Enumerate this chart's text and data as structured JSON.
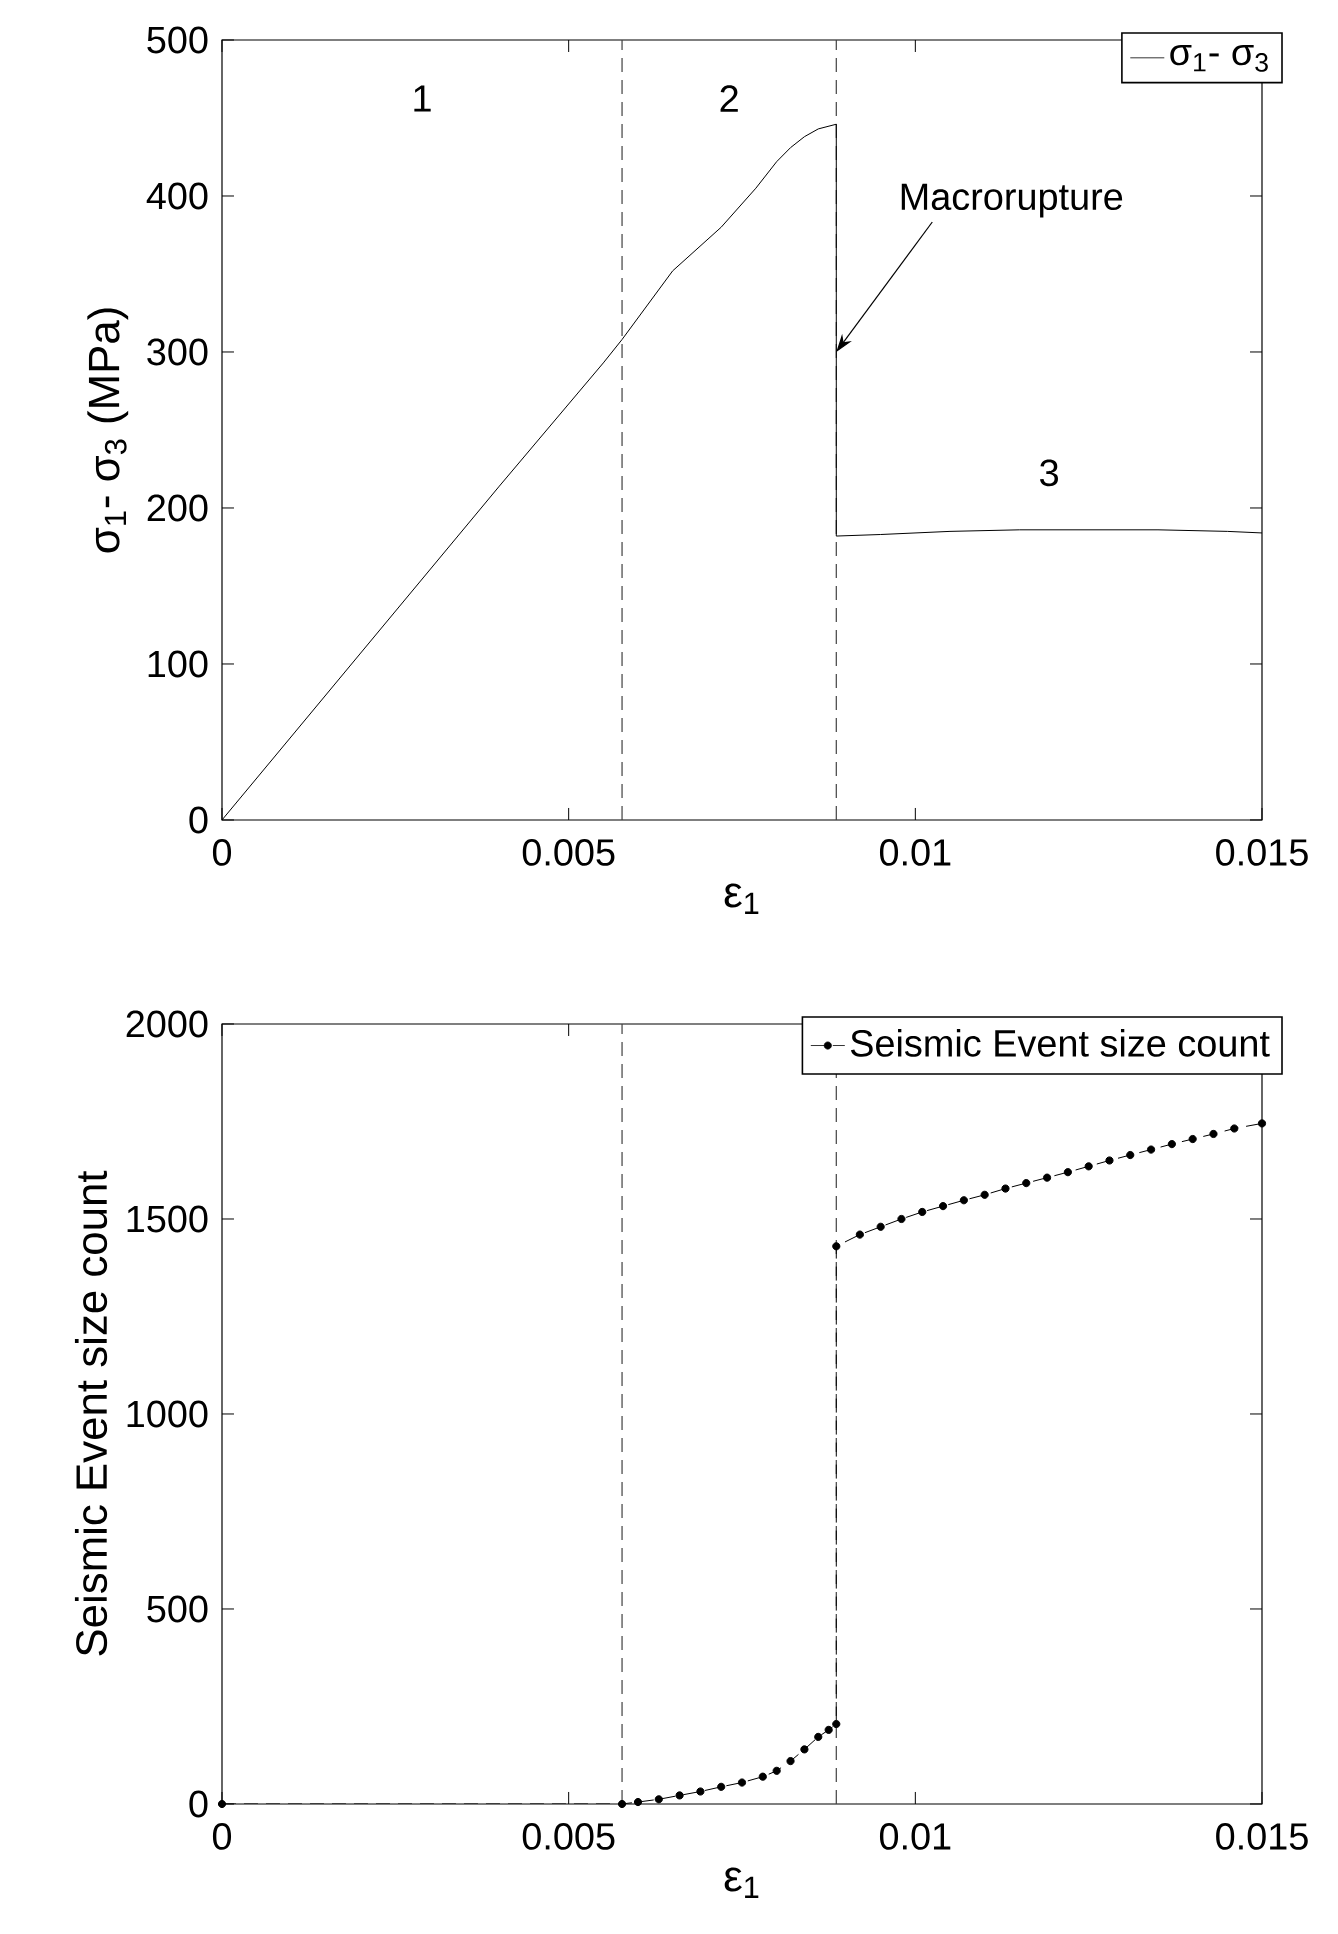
{
  "chart_data": [
    {
      "type": "line",
      "xlabel": "ε$_{1}$",
      "ylabel": "σ$_{1}$- σ$_{3}$ (MPa)",
      "xlim": [
        0,
        0.015
      ],
      "ylim": [
        0,
        500
      ],
      "xticks": [
        0,
        0.005,
        0.01,
        0.015
      ],
      "yticks": [
        0,
        100,
        200,
        300,
        400,
        500
      ],
      "legend": "top right",
      "marker": "none",
      "line_style": "solid",
      "series": [
        {
          "name": "σ$_{1}$- σ$_{3}$",
          "color": "#000000",
          "x": [
            0,
            0.002,
            0.004,
            0.0055,
            0.00577,
            0.0065,
            0.0072,
            0.0077,
            0.008,
            0.0082,
            0.0084,
            0.0086,
            0.00886,
            0.00886,
            0.0095,
            0.0105,
            0.0115,
            0.0125,
            0.0135,
            0.0145,
            0.015
          ],
          "values": [
            0,
            107,
            214,
            293,
            308,
            352,
            380,
            405,
            422,
            431,
            438,
            443,
            446,
            182,
            183,
            185,
            186,
            186,
            186,
            185,
            184
          ]
        }
      ],
      "ref_lines": [
        {
          "axis": "x",
          "value": 0.00577,
          "color": "#404040",
          "line_style": "dashed"
        },
        {
          "axis": "x",
          "value": 0.00886,
          "color": "#404040",
          "line_style": "dashed"
        }
      ],
      "annotations": [
        "1",
        "2",
        "3",
        {
          "text": "Macrorupture",
          "x": 0.00886,
          "y": 300
        }
      ]
    },
    {
      "type": "line",
      "xlabel": "ε$_{1}$",
      "ylabel": "Seismic Event size count",
      "xlim": [
        0,
        0.015
      ],
      "ylim": [
        0,
        2000
      ],
      "xticks": [
        0,
        0.005,
        0.01,
        0.015
      ],
      "yticks": [
        0,
        500,
        1000,
        1500,
        2000
      ],
      "legend": "top right",
      "marker": "circle",
      "line_style": "dashed",
      "series": [
        {
          "name": "Seismic Event size count",
          "color": "#000000",
          "x": [
            0,
            0.00577,
            0.006,
            0.0063,
            0.0066,
            0.0069,
            0.0072,
            0.0075,
            0.0078,
            0.008,
            0.0082,
            0.0084,
            0.0086,
            0.00875,
            0.00886,
            0.00886,
            0.0092,
            0.0095,
            0.0098,
            0.0101,
            0.0104,
            0.0107,
            0.011,
            0.0113,
            0.0116,
            0.0119,
            0.0122,
            0.0125,
            0.0128,
            0.0131,
            0.0134,
            0.0137,
            0.014,
            0.0143,
            0.0146,
            0.015
          ],
          "values": [
            0,
            0,
            5,
            12,
            22,
            32,
            44,
            55,
            70,
            85,
            110,
            140,
            172,
            190,
            205,
            1430,
            1460,
            1480,
            1500,
            1518,
            1533,
            1548,
            1562,
            1578,
            1592,
            1606,
            1620,
            1635,
            1650,
            1664,
            1678,
            1692,
            1705,
            1718,
            1732,
            1745
          ]
        }
      ],
      "ref_lines": [
        {
          "axis": "x",
          "value": 0.00577,
          "color": "#404040",
          "line_style": "dashed"
        },
        {
          "axis": "x",
          "value": 0.00886,
          "color": "#404040",
          "line_style": "dashed"
        }
      ]
    }
  ]
}
